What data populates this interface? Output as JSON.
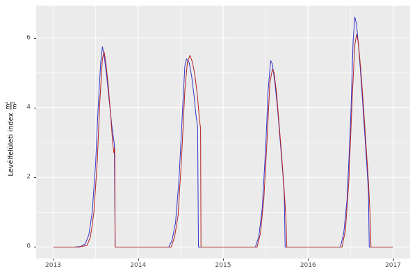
{
  "chart_data": {
    "type": "line",
    "title": "",
    "xlabel": "",
    "ylabel": "Levélfelületi index",
    "ylabel_unit_numerator": "m²",
    "ylabel_unit_denominator": "m²",
    "xlim": [
      2012.8,
      2017.2
    ],
    "ylim": [
      -0.33,
      6.93
    ],
    "x_ticks": [
      2013,
      2014,
      2015,
      2016,
      2017
    ],
    "x_tick_labels": [
      "2013",
      "2014",
      "2015",
      "2016",
      "2017"
    ],
    "x_minor_ticks": [
      2013.5,
      2014.5,
      2015.5,
      2016.5
    ],
    "y_ticks": [
      0,
      2,
      4,
      6
    ],
    "y_tick_labels": [
      "0",
      "2",
      "4",
      "6"
    ],
    "y_minor_ticks": [
      1,
      3,
      5
    ],
    "grid": true,
    "legend": "none",
    "panel_background": "#EBEBEB",
    "grid_major_color": "#FFFFFF",
    "grid_minor_color": "#FFFFFF",
    "series": [
      {
        "name": "blue-series",
        "color": "#3333CC",
        "points": [
          [
            2013.0,
            0
          ],
          [
            2013.25,
            0
          ],
          [
            2013.33,
            0.02
          ],
          [
            2013.38,
            0.1
          ],
          [
            2013.42,
            0.35
          ],
          [
            2013.46,
            1.0
          ],
          [
            2013.5,
            2.4
          ],
          [
            2013.53,
            4.0
          ],
          [
            2013.56,
            5.3
          ],
          [
            2013.58,
            5.75
          ],
          [
            2013.6,
            5.5
          ],
          [
            2013.63,
            4.9
          ],
          [
            2013.66,
            4.2
          ],
          [
            2013.69,
            3.5
          ],
          [
            2013.72,
            2.95
          ],
          [
            2013.73,
            0
          ],
          [
            2013.9,
            0
          ],
          [
            2014.2,
            0
          ],
          [
            2014.36,
            0
          ],
          [
            2014.4,
            0.2
          ],
          [
            2014.44,
            0.7
          ],
          [
            2014.48,
            1.9
          ],
          [
            2014.52,
            3.8
          ],
          [
            2014.55,
            5.2
          ],
          [
            2014.57,
            5.4
          ],
          [
            2014.6,
            5.3
          ],
          [
            2014.63,
            4.9
          ],
          [
            2014.66,
            4.3
          ],
          [
            2014.68,
            3.8
          ],
          [
            2014.7,
            3.45
          ],
          [
            2014.71,
            0
          ],
          [
            2014.9,
            0
          ],
          [
            2015.2,
            0
          ],
          [
            2015.38,
            0
          ],
          [
            2015.42,
            0.3
          ],
          [
            2015.46,
            1.1
          ],
          [
            2015.5,
            2.8
          ],
          [
            2015.53,
            4.5
          ],
          [
            2015.56,
            5.35
          ],
          [
            2015.58,
            5.25
          ],
          [
            2015.61,
            4.7
          ],
          [
            2015.64,
            4.0
          ],
          [
            2015.67,
            3.1
          ],
          [
            2015.7,
            2.2
          ],
          [
            2015.72,
            1.5
          ],
          [
            2015.73,
            0
          ],
          [
            2015.9,
            0
          ],
          [
            2016.2,
            0
          ],
          [
            2016.38,
            0
          ],
          [
            2016.42,
            0.4
          ],
          [
            2016.46,
            1.4
          ],
          [
            2016.5,
            3.6
          ],
          [
            2016.53,
            5.9
          ],
          [
            2016.55,
            6.6
          ],
          [
            2016.57,
            6.4
          ],
          [
            2016.6,
            5.6
          ],
          [
            2016.63,
            4.6
          ],
          [
            2016.66,
            3.5
          ],
          [
            2016.69,
            2.4
          ],
          [
            2016.71,
            1.6
          ],
          [
            2016.72,
            0
          ],
          [
            2016.9,
            0
          ],
          [
            2017.0,
            0
          ]
        ]
      },
      {
        "name": "red-series",
        "color": "#B22222",
        "points": [
          [
            2013.0,
            0
          ],
          [
            2013.3,
            0
          ],
          [
            2013.4,
            0.05
          ],
          [
            2013.44,
            0.3
          ],
          [
            2013.48,
            1.0
          ],
          [
            2013.52,
            2.5
          ],
          [
            2013.55,
            4.2
          ],
          [
            2013.58,
            5.4
          ],
          [
            2013.6,
            5.6
          ],
          [
            2013.62,
            5.3
          ],
          [
            2013.65,
            4.6
          ],
          [
            2013.68,
            3.7
          ],
          [
            2013.7,
            3.0
          ],
          [
            2013.715,
            2.7
          ],
          [
            2013.725,
            2.85
          ],
          [
            2013.73,
            0
          ],
          [
            2013.9,
            0
          ],
          [
            2014.2,
            0
          ],
          [
            2014.39,
            0
          ],
          [
            2014.43,
            0.3
          ],
          [
            2014.47,
            0.9
          ],
          [
            2014.51,
            2.5
          ],
          [
            2014.55,
            4.5
          ],
          [
            2014.58,
            5.3
          ],
          [
            2014.61,
            5.5
          ],
          [
            2014.64,
            5.3
          ],
          [
            2014.67,
            4.9
          ],
          [
            2014.7,
            4.3
          ],
          [
            2014.72,
            3.7
          ],
          [
            2014.735,
            3.4
          ],
          [
            2014.74,
            0
          ],
          [
            2014.9,
            0
          ],
          [
            2015.2,
            0
          ],
          [
            2015.4,
            0
          ],
          [
            2015.44,
            0.4
          ],
          [
            2015.48,
            1.4
          ],
          [
            2015.52,
            3.2
          ],
          [
            2015.55,
            4.7
          ],
          [
            2015.58,
            5.1
          ],
          [
            2015.6,
            5.0
          ],
          [
            2015.63,
            4.4
          ],
          [
            2015.66,
            3.5
          ],
          [
            2015.69,
            2.6
          ],
          [
            2015.72,
            1.6
          ],
          [
            2015.74,
            0.8
          ],
          [
            2015.75,
            0
          ],
          [
            2015.9,
            0
          ],
          [
            2016.2,
            0
          ],
          [
            2016.4,
            0
          ],
          [
            2016.44,
            0.5
          ],
          [
            2016.48,
            1.9
          ],
          [
            2016.52,
            4.3
          ],
          [
            2016.55,
            5.8
          ],
          [
            2016.57,
            6.1
          ],
          [
            2016.59,
            5.9
          ],
          [
            2016.62,
            5.1
          ],
          [
            2016.65,
            4.1
          ],
          [
            2016.68,
            3.0
          ],
          [
            2016.71,
            1.9
          ],
          [
            2016.73,
            0.9
          ],
          [
            2016.74,
            0
          ],
          [
            2016.9,
            0
          ],
          [
            2017.0,
            0
          ]
        ]
      }
    ]
  }
}
